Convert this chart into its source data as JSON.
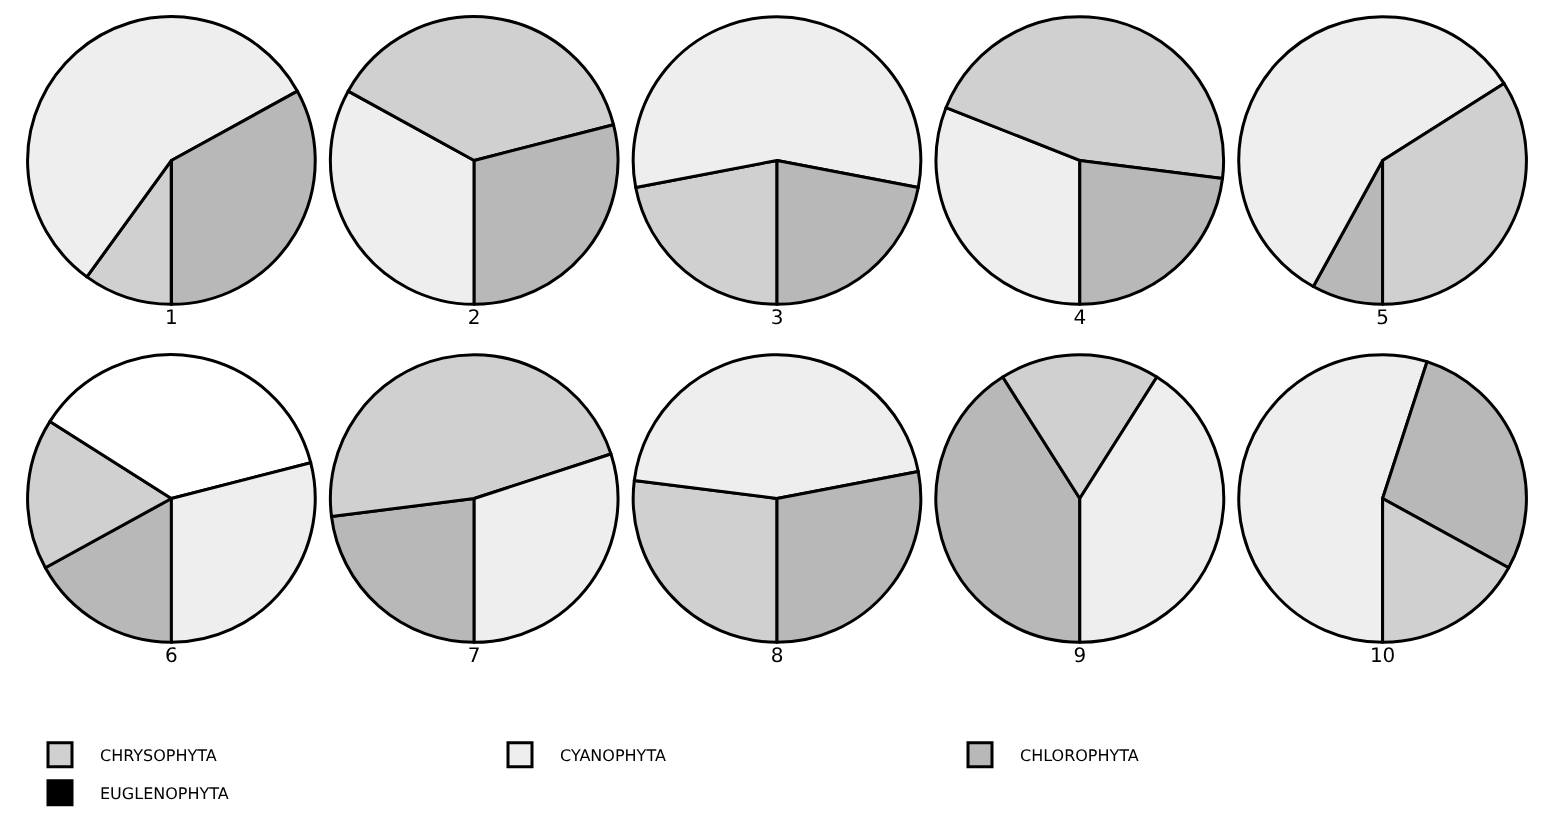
{
  "chart_data": [
    {
      "type": "pie",
      "title": "1",
      "categories": [
        "CHRYSOPHYTA",
        "CYANOPHYTA",
        "CHLOROPHYTA",
        "EUGLENOPHYTA"
      ],
      "values": [
        10,
        57,
        33,
        0
      ],
      "colors": [
        "#d0d0d0",
        "#eeeeee",
        "#b8b8b8",
        "#000000"
      ],
      "legend": "bottom"
    },
    {
      "type": "pie",
      "title": "2",
      "categories": [
        null,
        null,
        null
      ],
      "values": [
        33,
        38,
        29
      ],
      "colors": [
        "#eeeeee",
        "#d0d0d0",
        "#b8b8b8"
      ]
    },
    {
      "type": "pie",
      "title": "3",
      "categories": [
        null,
        null,
        null
      ],
      "values": [
        22,
        56,
        22
      ],
      "colors": [
        "#d0d0d0",
        "#eeeeee",
        "#b8b8b8"
      ]
    },
    {
      "type": "pie",
      "title": "4",
      "categories": [
        null,
        null,
        null
      ],
      "values": [
        31,
        46,
        23
      ],
      "colors": [
        "#eeeeee",
        "#d0d0d0",
        "#b8b8b8"
      ]
    },
    {
      "type": "pie",
      "title": "5",
      "categories": [
        null,
        null,
        null
      ],
      "values": [
        8,
        58,
        34
      ],
      "colors": [
        "#b8b8b8",
        "#eeeeee",
        "#d0d0d0"
      ]
    },
    {
      "type": "pie",
      "title": "6",
      "categories": [
        null,
        null,
        null,
        null
      ],
      "values": [
        17,
        17,
        37,
        29
      ],
      "colors": [
        "#b8b8b8",
        "#d0d0d0",
        "#ffffff",
        "#eeeeee"
      ]
    },
    {
      "type": "pie",
      "title": "7",
      "categories": [
        null,
        null,
        null
      ],
      "values": [
        23,
        47,
        30
      ],
      "colors": [
        "#b8b8b8",
        "#d0d0d0",
        "#eeeeee"
      ]
    },
    {
      "type": "pie",
      "title": "8",
      "categories": [
        null,
        null,
        null
      ],
      "values": [
        27,
        45,
        28
      ],
      "colors": [
        "#d0d0d0",
        "#eeeeee",
        "#b8b8b8"
      ]
    },
    {
      "type": "pie",
      "title": "9",
      "categories": [
        null,
        null,
        null
      ],
      "values": [
        41,
        18,
        41
      ],
      "colors": [
        "#b8b8b8",
        "#d0d0d0",
        "#eeeeee"
      ]
    },
    {
      "type": "pie",
      "title": "10",
      "categories": [
        null,
        null,
        null
      ],
      "values": [
        55,
        28,
        17
      ],
      "colors": [
        "#eeeeee",
        "#b8b8b8",
        "#d0d0d0"
      ]
    }
  ]
}
